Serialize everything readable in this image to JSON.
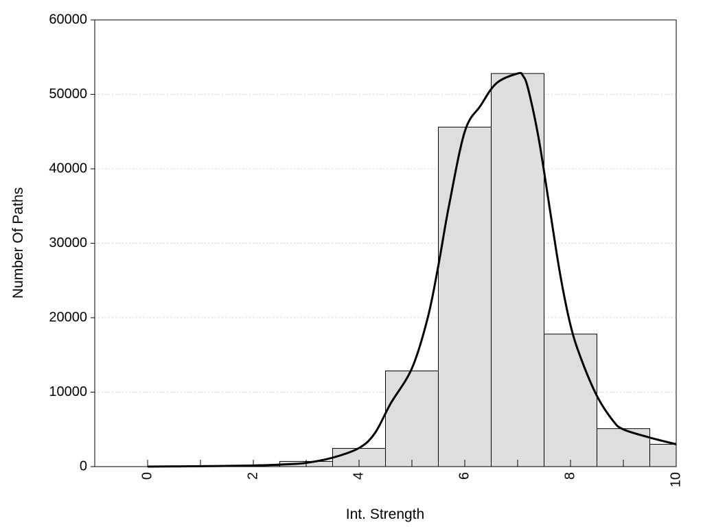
{
  "chart_data": {
    "type": "bar",
    "title": "",
    "xlabel": "Int. Strength",
    "ylabel": "Number Of Paths",
    "xlim": [
      -1,
      10
    ],
    "ylim": [
      0,
      60000
    ],
    "x_ticks": [
      0,
      2,
      4,
      6,
      8,
      10
    ],
    "y_ticks": [
      0,
      10000,
      20000,
      30000,
      40000,
      50000,
      60000
    ],
    "grid": "horizontal dotted",
    "legend": "none",
    "bar_color": "#dedede",
    "bar_edge_color": "#000000",
    "line_color": "#000000",
    "bars": [
      {
        "x": 0,
        "value": 0
      },
      {
        "x": 1,
        "value": 0
      },
      {
        "x": 2,
        "value": 150
      },
      {
        "x": 3,
        "value": 700
      },
      {
        "x": 4,
        "value": 2450
      },
      {
        "x": 5,
        "value": 12850
      },
      {
        "x": 6,
        "value": 45600
      },
      {
        "x": 7,
        "value": 52800
      },
      {
        "x": 8,
        "value": 17800
      },
      {
        "x": 9,
        "value": 5100
      },
      {
        "x": 10,
        "value": 3000
      }
    ],
    "density_curve": [
      [
        0,
        0
      ],
      [
        1,
        60
      ],
      [
        2,
        150
      ],
      [
        2.6,
        300
      ],
      [
        3,
        500
      ],
      [
        3.5,
        1200
      ],
      [
        4,
        2500
      ],
      [
        4.3,
        4500
      ],
      [
        4.6,
        8500
      ],
      [
        5,
        13200
      ],
      [
        5.3,
        20000
      ],
      [
        5.5,
        27000
      ],
      [
        5.7,
        35000
      ],
      [
        6,
        45000
      ],
      [
        6.3,
        48500
      ],
      [
        6.6,
        51500
      ],
      [
        7,
        52800
      ],
      [
        7.1,
        52500
      ],
      [
        7.2,
        50700
      ],
      [
        7.4,
        44000
      ],
      [
        7.6,
        35000
      ],
      [
        7.8,
        26000
      ],
      [
        8,
        19000
      ],
      [
        8.2,
        14500
      ],
      [
        8.5,
        9500
      ],
      [
        8.8,
        6200
      ],
      [
        9,
        5000
      ],
      [
        9.5,
        3900
      ],
      [
        10,
        3000
      ]
    ]
  }
}
